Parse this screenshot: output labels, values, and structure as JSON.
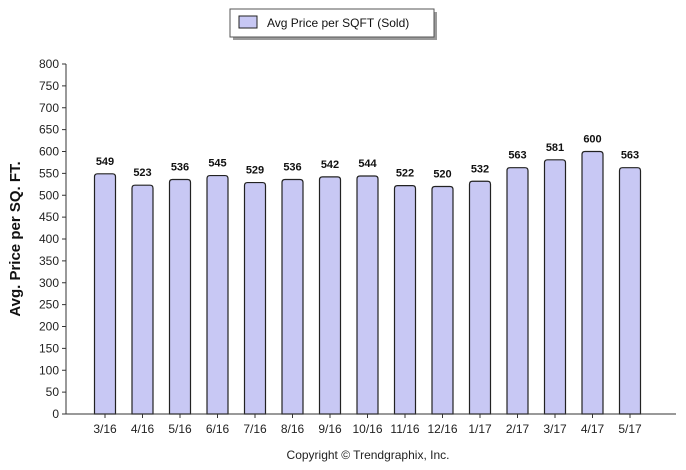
{
  "chart_data": {
    "type": "bar",
    "categories": [
      "3/16",
      "4/16",
      "5/16",
      "6/16",
      "7/16",
      "8/16",
      "9/16",
      "10/16",
      "11/16",
      "12/16",
      "1/17",
      "2/17",
      "3/17",
      "4/17",
      "5/17"
    ],
    "series": [
      {
        "name": "Avg Price per SQFT (Sold)",
        "values": [
          549,
          523,
          536,
          545,
          529,
          536,
          542,
          544,
          522,
          520,
          532,
          563,
          581,
          600,
          563
        ]
      }
    ],
    "data_labels": [
      "549",
      "523",
      "536",
      "545",
      "529",
      "536",
      "542",
      "544",
      "522",
      "520",
      "532",
      "563",
      "581",
      "600",
      "563"
    ],
    "title": "",
    "xlabel": "",
    "ylabel": "Avg. Price per SQ. FT.",
    "ylim": [
      0,
      800
    ],
    "yticks": [
      0,
      50,
      100,
      150,
      200,
      250,
      300,
      350,
      400,
      450,
      500,
      550,
      600,
      650,
      700,
      750,
      800
    ],
    "grid": false,
    "legend_position": "top-center",
    "bar_color": "#c8c8f4",
    "bar_edge_color": "#222222"
  },
  "footer": {
    "copyright": "Copyright © Trendgraphix, Inc."
  }
}
